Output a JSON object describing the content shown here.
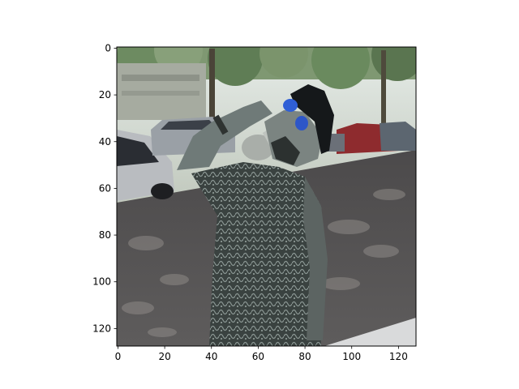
{
  "colors": {
    "background": "#ffffff",
    "axis": "#000000"
  },
  "chart_data": {
    "type": "image",
    "title": "",
    "xlabel": "",
    "ylabel": "",
    "image_size": [
      128,
      128
    ],
    "xlim": [
      -0.5,
      127.5
    ],
    "ylim": [
      127.5,
      -0.5
    ],
    "xticks": [
      0,
      20,
      40,
      60,
      80,
      100,
      120
    ],
    "yticks": [
      0,
      20,
      40,
      60,
      80,
      100,
      120
    ],
    "image_subject": "low-resolution photo of a person drinking from a bottle on a tree-lined street with parked cars"
  }
}
